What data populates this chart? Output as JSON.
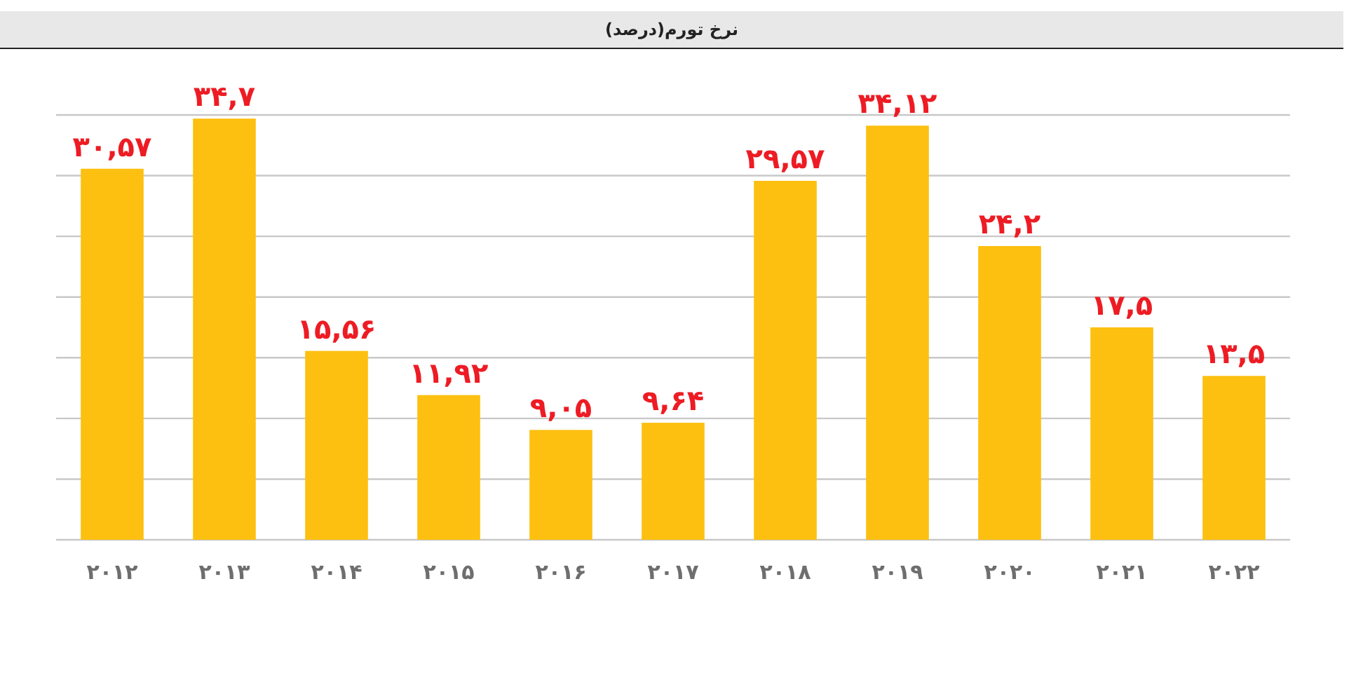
{
  "chart_data": {
    "type": "bar",
    "title": "نرخ تورم(درصد)",
    "categories": [
      "۲۰۱۲",
      "۲۰۱۳",
      "۲۰۱۴",
      "۲۰۱۵",
      "۲۰۱۶",
      "۲۰۱۷",
      "۲۰۱۸",
      "۲۰۱۹",
      "۲۰۲۰",
      "۲۰۲۱",
      "۲۰۲۲"
    ],
    "values": [
      30.57,
      34.7,
      15.56,
      11.92,
      9.05,
      9.64,
      29.57,
      34.12,
      24.2,
      17.5,
      13.5
    ],
    "value_labels": [
      "۳۰,۵۷",
      "۳۴,۷",
      "۱۵,۵۶",
      "۱۱,۹۲",
      "۹,۰۵",
      "۹,۶۴",
      "۲۹,۵۷",
      "۳۴,۱۲",
      "۲۴,۲",
      "۱۷,۵",
      "۱۳,۵"
    ],
    "color": "#fdc010",
    "ylim": [
      0,
      35
    ],
    "yticks": [
      {
        "value": 0,
        "label": null
      },
      {
        "value": 5,
        "label": null
      },
      {
        "value": 10,
        "label": null
      },
      {
        "value": 15,
        "label": null
      },
      {
        "value": 20,
        "label": null
      },
      {
        "value": 25,
        "label": null
      },
      {
        "value": 30,
        "label": null
      },
      {
        "value": 35,
        "label": null
      }
    ],
    "grid": "y",
    "tick_labels": "x"
  }
}
